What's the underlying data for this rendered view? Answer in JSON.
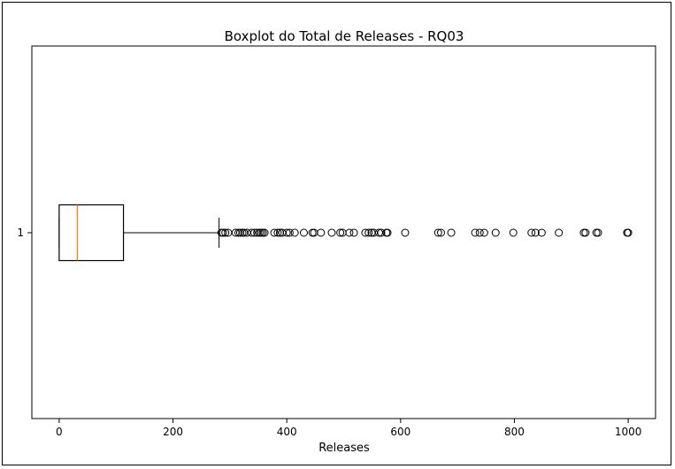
{
  "chart_data": {
    "type": "boxplot",
    "title": "Boxplot do Total de Releases - RQ03",
    "xlabel": "Releases",
    "ylabel": "",
    "orientation": "horizontal",
    "xlim": [
      -48,
      1048
    ],
    "xticks": [
      0,
      200,
      400,
      600,
      800,
      1000
    ],
    "categories": [
      "1"
    ],
    "box": {
      "whisker_low": 0,
      "q1": 0,
      "median": 32,
      "q3": 113,
      "whisker_high": 281
    },
    "outliers": [
      285,
      288,
      292,
      297,
      310,
      315,
      318,
      322,
      325,
      330,
      338,
      343,
      348,
      352,
      355,
      358,
      361,
      378,
      384,
      388,
      392,
      400,
      405,
      414,
      430,
      445,
      448,
      460,
      479,
      494,
      498,
      510,
      518,
      538,
      544,
      549,
      553,
      562,
      566,
      575,
      577,
      608,
      666,
      671,
      689,
      731,
      739,
      747,
      767,
      798,
      830,
      837,
      848,
      878,
      922,
      925,
      944,
      947,
      998,
      1000
    ],
    "grid": false,
    "colors": {
      "median": "#ff7f0e",
      "box": "#000000"
    }
  }
}
